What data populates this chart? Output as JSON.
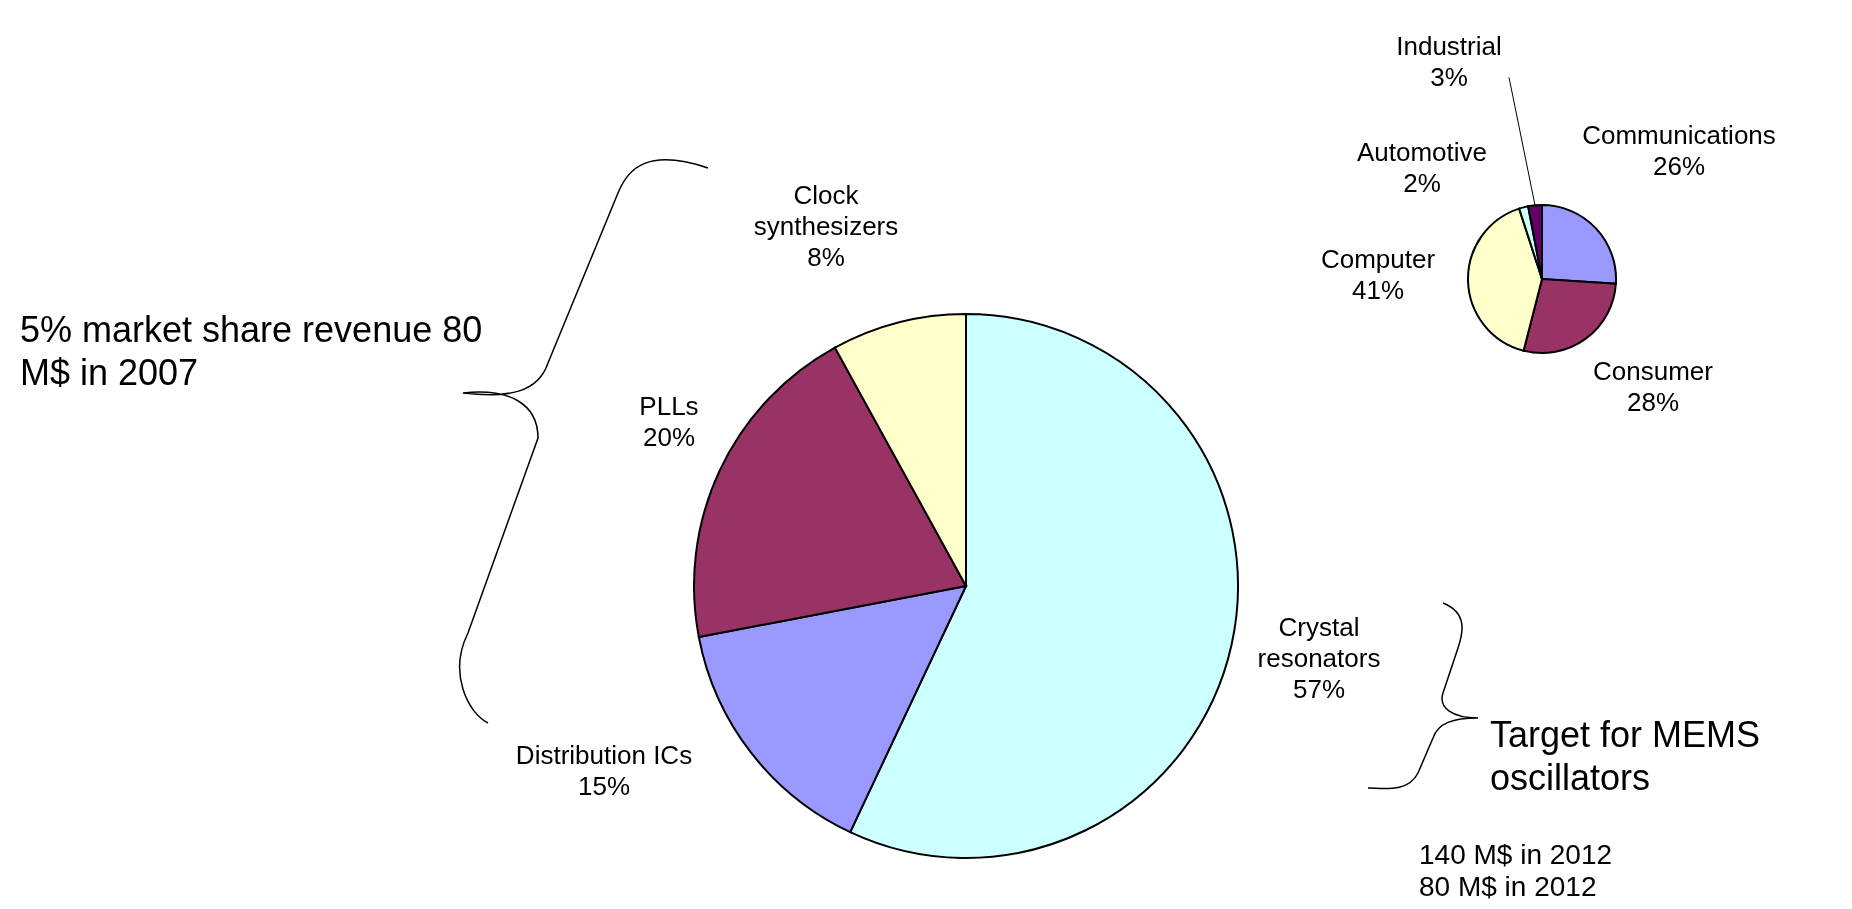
{
  "chart_data": [
    {
      "type": "pie",
      "categories": [
        "Crystal resonators",
        "Distribution ICs",
        "PLLs",
        "Clock synthesizers"
      ],
      "values": [
        57,
        15,
        20,
        8
      ],
      "colors": [
        "#ccffff",
        "#9999ff",
        "#993366",
        "#ffffcc"
      ],
      "value_labels": [
        "57%",
        "15%",
        "20%",
        "8%"
      ],
      "annotations": [
        "5% market share revenue 80 M$ in 2007",
        "Target for MEMS oscillators",
        "140 M$ in 2012",
        "80 M$ in 2012"
      ]
    },
    {
      "type": "pie",
      "categories": [
        "Communications",
        "Consumer",
        "Computer",
        "Automotive",
        "Industrial"
      ],
      "values": [
        26,
        28,
        41,
        2,
        3
      ],
      "colors": [
        "#9999ff",
        "#993366",
        "#ffffcc",
        "#ccffff",
        "#660066"
      ],
      "value_labels": [
        "26%",
        "28%",
        "41%",
        "2%",
        "3%"
      ]
    }
  ]
}
